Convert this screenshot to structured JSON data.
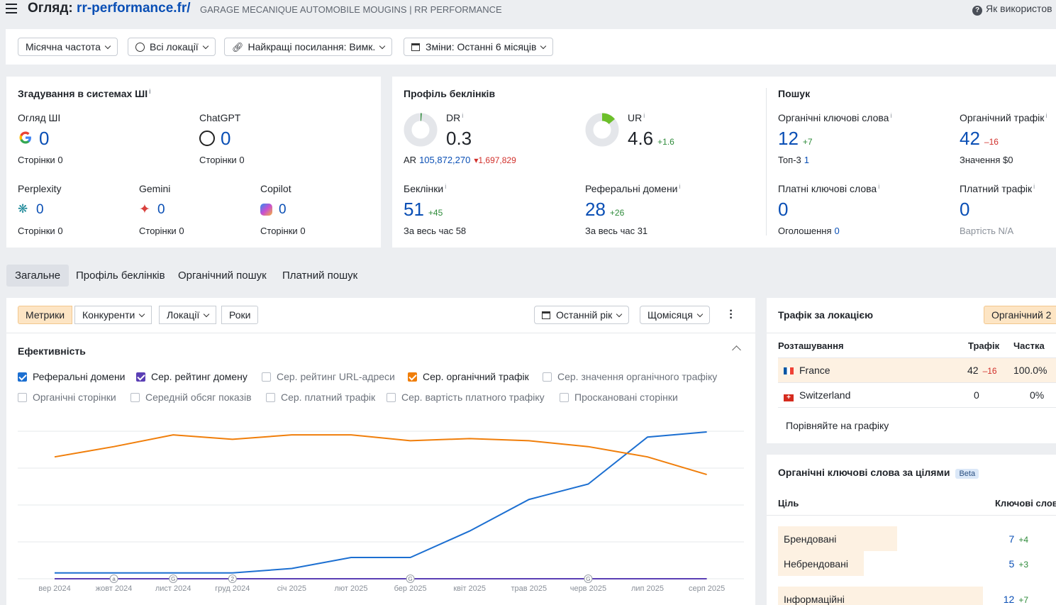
{
  "header": {
    "title_prefix": "Огляд:",
    "domain": "rr-performance.fr/",
    "subtitle": "GARAGE MECANIQUE AUTOMOBILE MOUGINS | RR PERFORMANCE",
    "help": "Як використов"
  },
  "filters": {
    "frequency": "Місячна частота",
    "locations": "Всі локації",
    "best_links": "Найкращі посилання: Вимк.",
    "changes": "Зміни: Останні 6 місяців"
  },
  "ai": {
    "title": "Згадування в системах ШІ",
    "overview": {
      "label": "Огляд ШІ",
      "value": "0",
      "pages_label": "Сторінки",
      "pages": "0"
    },
    "chatgpt": {
      "label": "ChatGPT",
      "value": "0",
      "pages_label": "Сторінки",
      "pages": "0"
    },
    "perplexity": {
      "label": "Perplexity",
      "value": "0",
      "pages_label": "Сторінки",
      "pages": "0"
    },
    "gemini": {
      "label": "Gemini",
      "value": "0",
      "pages_label": "Сторінки",
      "pages": "0"
    },
    "copilot": {
      "label": "Copilot",
      "value": "0",
      "pages_label": "Сторінки",
      "pages": "0"
    }
  },
  "backlinks": {
    "title": "Профіль беклінків",
    "dr": {
      "label": "DR",
      "value": "0.3",
      "fill": 0.003
    },
    "ar": {
      "label": "AR",
      "value": "105,872,270",
      "delta": "1,697,829"
    },
    "ur": {
      "label": "UR",
      "value": "4.6",
      "delta": "+1.6",
      "fill": 0.046
    },
    "backlinks": {
      "label": "Беклінки",
      "value": "51",
      "delta": "+45",
      "all_label": "За весь час",
      "all": "58"
    },
    "ref_domains": {
      "label": "Реферальні домени",
      "value": "28",
      "delta": "+26",
      "all_label": "За весь час",
      "all": "31"
    }
  },
  "search": {
    "title": "Пошук",
    "org_kw": {
      "label": "Органічні ключові слова",
      "value": "12",
      "delta": "+7",
      "sub_label": "Топ-3",
      "sub": "1"
    },
    "org_traffic": {
      "label": "Органічний трафік",
      "value": "42",
      "delta": "–16",
      "sub_label": "Значення",
      "sub": "$0"
    },
    "paid_kw": {
      "label": "Платні ключові слова",
      "value": "0",
      "sub_label": "Оголошення",
      "sub": "0"
    },
    "paid_traffic": {
      "label": "Платний трафік",
      "value": "0",
      "sub_label": "Вартість",
      "sub": "N/A"
    }
  },
  "tabs": [
    "Загальне",
    "Профіль беклінків",
    "Органічний пошук",
    "Платний пошук"
  ],
  "chart_panel": {
    "segments": [
      "Метрики",
      "Конкуренти",
      "Локації",
      "Роки"
    ],
    "period": "Останній рік",
    "interval": "Щомісяця",
    "section_title": "Ефективність",
    "checkboxes": [
      {
        "label": "Реферальні домени",
        "checked": true,
        "color": "#1c6fd1"
      },
      {
        "label": "Сер. рейтинг домену",
        "checked": true,
        "color": "#5b3fb5"
      },
      {
        "label": "Сер. рейтинг URL-адреси",
        "checked": false
      },
      {
        "label": "Сер. органічний трафік",
        "checked": true,
        "color": "#f07e0a"
      },
      {
        "label": "Сер. значення органічного трафіку",
        "checked": false
      },
      {
        "label": "Органічні сторінки",
        "checked": false
      },
      {
        "label": "Середній обсяг показів",
        "checked": false
      },
      {
        "label": "Сер. платний трафік",
        "checked": false
      },
      {
        "label": "Сер. вартість платного трафіку",
        "checked": false
      },
      {
        "label": "Проскановані сторінки",
        "checked": false
      }
    ]
  },
  "chart_data": {
    "type": "line",
    "x": [
      "вер 2024",
      "жовт 2024",
      "лист 2024",
      "груд 2024",
      "січ 2025",
      "лют 2025",
      "бер 2025",
      "квіт 2025",
      "трав 2025",
      "черв 2025",
      "лип 2025",
      "серп 2025"
    ],
    "ylim": [
      0,
      1
    ],
    "grid": true,
    "series": [
      {
        "name": "Реферальні домени",
        "color": "#1c6fd1",
        "values": [
          0.04,
          0.04,
          0.04,
          0.04,
          0.07,
          0.145,
          0.145,
          0.325,
          0.54,
          0.645,
          0.965,
          1.0
        ]
      },
      {
        "name": "Сер. органічний трафік",
        "color": "#f07e0a",
        "values": [
          0.83,
          0.9,
          0.98,
          0.95,
          0.98,
          0.98,
          0.94,
          0.955,
          0.94,
          0.9,
          0.83,
          0.71
        ]
      },
      {
        "name": "Сер. рейтинг домену",
        "color": "#5b3fb5",
        "values": [
          0,
          0,
          0,
          0,
          0,
          0,
          0,
          0,
          0,
          0,
          0,
          0
        ]
      }
    ],
    "markers": [
      {
        "x": "жовт 2024",
        "label": "a"
      },
      {
        "x": "лист 2024",
        "label": "G"
      },
      {
        "x": "груд 2024",
        "label": "2"
      },
      {
        "x": "бер 2025",
        "label": "G"
      },
      {
        "x": "черв 2025",
        "label": "G"
      }
    ]
  },
  "traffic_loc": {
    "title": "Трафік за локацією",
    "mode": "Органічний",
    "mode_suffix": "2",
    "col_loc": "Розташування",
    "col_traffic": "Трафік",
    "col_share": "Частка",
    "rows": [
      {
        "name": "France",
        "traffic": "42",
        "delta": "–16",
        "share": "100.0%"
      },
      {
        "name": "Switzerland",
        "traffic": "0",
        "delta": "",
        "share": "0%"
      }
    ],
    "compare": "Порівняйте на графіку"
  },
  "intent": {
    "title": "Органічні ключові слова за цілями",
    "beta": "Beta",
    "col_goal": "Ціль",
    "col_kw": "Ключові слов",
    "rows": [
      {
        "name": "Брендовані",
        "value": "7",
        "delta": "+4",
        "bar": 0.58
      },
      {
        "name": "Небрендовані",
        "value": "5",
        "delta": "+3",
        "bar": 0.42
      },
      {
        "name": "Інформаційні",
        "value": "12",
        "delta": "+7",
        "bar": 1
      }
    ]
  }
}
